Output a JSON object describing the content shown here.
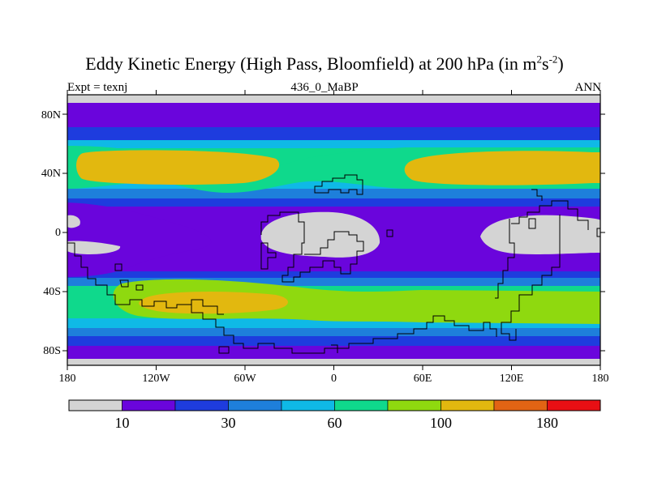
{
  "title": {
    "main": "Eddy Kinetic Energy (High Pass, Bloomfield) at 200 hPa (in m",
    "sup1": "2",
    "mid": "s",
    "sup2": "-2",
    "end": ")"
  },
  "subtitle": {
    "left": "Expt = texnj",
    "center": "436_0_MaBP",
    "right": "ANN"
  },
  "map": {
    "lon_labels": [
      "180",
      "120W",
      "60W",
      "0",
      "60E",
      "120E",
      "180"
    ],
    "lat_labels": [
      "80N",
      "40N",
      "0",
      "40S",
      "80S"
    ]
  },
  "colorbar": {
    "colors": [
      "#d4d4d4",
      "#6a05dc",
      "#1e3cde",
      "#1e7fdb",
      "#0fb9e6",
      "#0fd98c",
      "#8fd90f",
      "#e2b80f",
      "#e26414",
      "#e80f14"
    ],
    "labels": [
      "10",
      "30",
      "60",
      "100",
      "180"
    ]
  }
}
